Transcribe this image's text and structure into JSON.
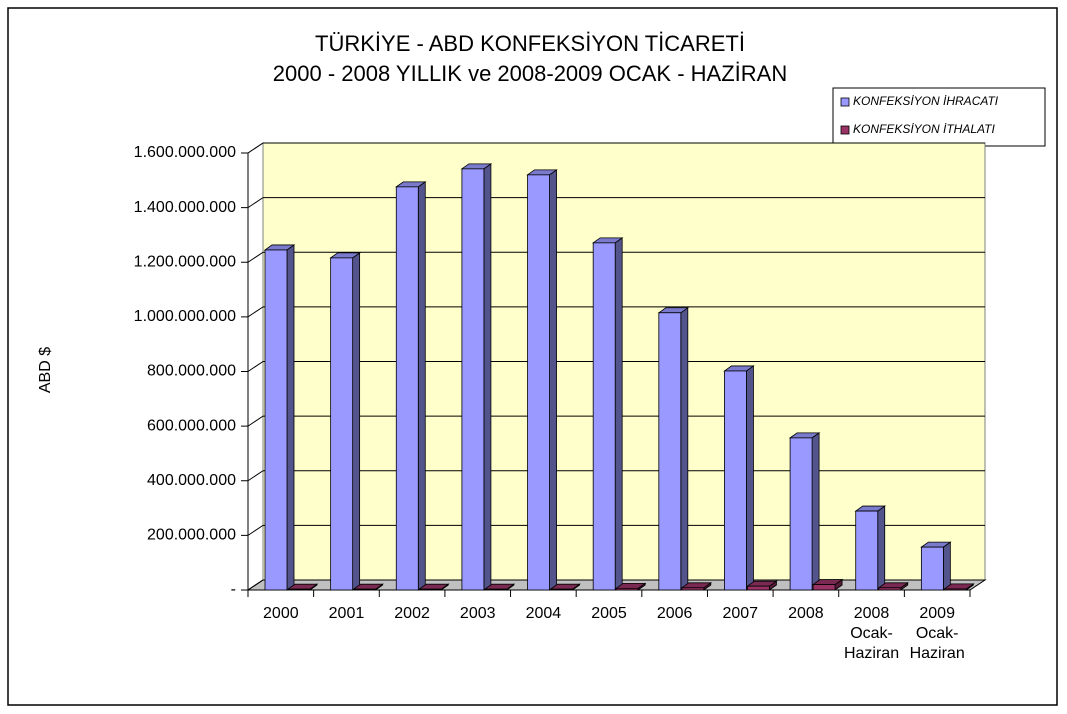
{
  "chart_data": {
    "type": "bar3d",
    "title": "TÜRKİYE - ABD KONFEKSİYON TİCARETİ",
    "subtitle": "2000 - 2008 YILLIK ve 2008-2009 OCAK - HAZİRAN",
    "y_label": "ABD $",
    "categories": [
      "2000",
      "2001",
      "2002",
      "2003",
      "2004",
      "2005",
      "2006",
      "2007",
      "2008",
      "2008\nOcak-\nHaziran",
      "2009\nOcak-\nHaziran"
    ],
    "series": [
      {
        "name": "KONFEKSİYON İHRACATI",
        "color": "#9999ff",
        "values": [
          1245000000,
          1216000000,
          1476000000,
          1542000000,
          1520000000,
          1271000000,
          1015000000,
          802000000,
          557000000,
          289000000,
          157000000
        ]
      },
      {
        "name": "KONFEKSİYON İTHALATI",
        "color": "#993366",
        "values": [
          3000000,
          3000000,
          3000000,
          3000000,
          3000000,
          6000000,
          8000000,
          14000000,
          20000000,
          8000000,
          4000000
        ]
      }
    ],
    "ylim": [
      0,
      1600000000
    ],
    "yticks": [
      {
        "value": 0,
        "label": "-"
      },
      {
        "value": 200000000,
        "label": "200.000.000"
      },
      {
        "value": 400000000,
        "label": "400.000.000"
      },
      {
        "value": 600000000,
        "label": "600.000.000"
      },
      {
        "value": 800000000,
        "label": "800.000.000"
      },
      {
        "value": 1000000000,
        "label": "1.000.000.000"
      },
      {
        "value": 1200000000,
        "label": "1.200.000.000"
      },
      {
        "value": 1400000000,
        "label": "1.400.000.000"
      },
      {
        "value": 1600000000,
        "label": "1.600.000.000"
      }
    ],
    "grid": true,
    "legend": "top-right"
  }
}
